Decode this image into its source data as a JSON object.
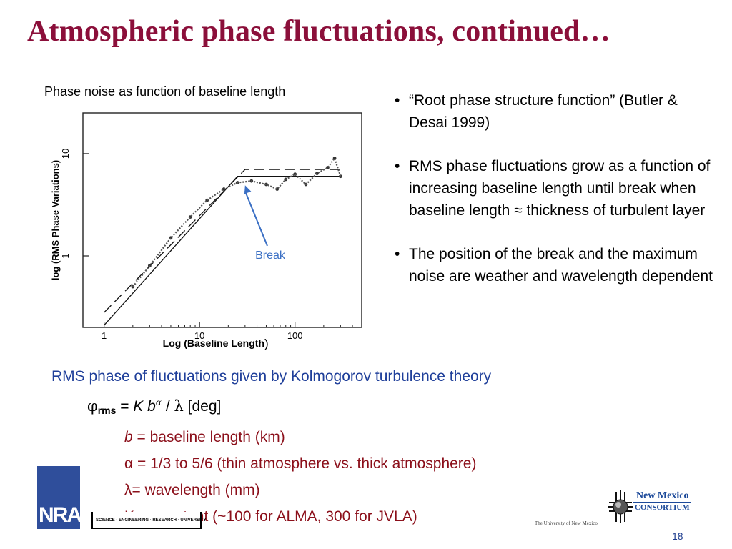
{
  "slide": {
    "title": "Atmospheric phase fluctuations, continued…",
    "page_number": "18",
    "colors": {
      "title": "#8b0f3a",
      "blue_text": "#1f3f9a",
      "definition_text": "#8b0f1a",
      "arrow": "#3a6fc4"
    }
  },
  "figure": {
    "caption": "Phase noise as function of baseline length",
    "ylabel": "log (RMS Phase Variations)",
    "xlabel": "Log (Baseline Length",
    "xlabel_paren": ")",
    "annotation": "Break",
    "x_ticks": [
      "1",
      "10",
      "100"
    ],
    "y_ticks": [
      "1",
      "10"
    ]
  },
  "chart_data": {
    "type": "line",
    "xscale": "log",
    "yscale": "log",
    "xlabel": "Log (Baseline Length)",
    "ylabel": "log (RMS Phase Variations)",
    "xlim": [
      0.6,
      500
    ],
    "ylim": [
      0.2,
      25
    ],
    "x_ticks": [
      1,
      10,
      100
    ],
    "y_ticks": [
      1,
      10
    ],
    "series": [
      {
        "style": "solid",
        "x": [
          1,
          25,
          300
        ],
        "y": [
          0.21,
          6.0,
          6.0
        ]
      },
      {
        "style": "dashed",
        "x": [
          1,
          30,
          300
        ],
        "y": [
          0.28,
          7.0,
          7.0
        ]
      },
      {
        "style": "points",
        "x": [
          2,
          3,
          5,
          8,
          12,
          18,
          25,
          35,
          50,
          65,
          80,
          100,
          130,
          170,
          220,
          260,
          300
        ],
        "y": [
          0.5,
          0.8,
          1.5,
          2.4,
          3.5,
          4.5,
          5.2,
          5.4,
          5.0,
          4.5,
          5.6,
          6.3,
          5.0,
          6.4,
          7.3,
          9.0,
          6.0
        ]
      }
    ],
    "annotations": [
      {
        "text": "Break",
        "x": 30,
        "y": 5.4
      }
    ],
    "grid": false
  },
  "bullets": [
    "“Root phase structure function” (Butler & Desai 1999)",
    "RMS phase fluctuations grow as a function of increasing baseline length until break when baseline length ≈ thickness of turbulent layer",
    "The position of the break and the maximum noise are weather and wavelength dependent"
  ],
  "kolmogorov": {
    "intro": "RMS phase of fluctuations given by Kolmogorov turbulence theory",
    "phi": "φ",
    "rms": "rms",
    "eq": " = ",
    "K": "K b",
    "alpha_sup": "α",
    "slash": " / ",
    "lambda": "λ",
    "unit": " [deg]",
    "def_b_var": "b",
    "def_b_text": " = baseline length (km)",
    "def_alpha": "α = 1/3 to 5/6 (thin atmosphere vs. thick atmosphere)",
    "def_lambda": "λ= wavelength (mm)",
    "def_K": "K = constant (~100 for ALMA, 300 for JVLA)"
  },
  "footer": {
    "left_logo_text": "NRAO",
    "bar_text": "SCIENCE · ENGINEERING · RESEARCH · UNIVERSITY",
    "unm_text": "The University of New Mexico",
    "nmc_line1": "New Mexico",
    "nmc_line2": "CONSORTIUM"
  }
}
